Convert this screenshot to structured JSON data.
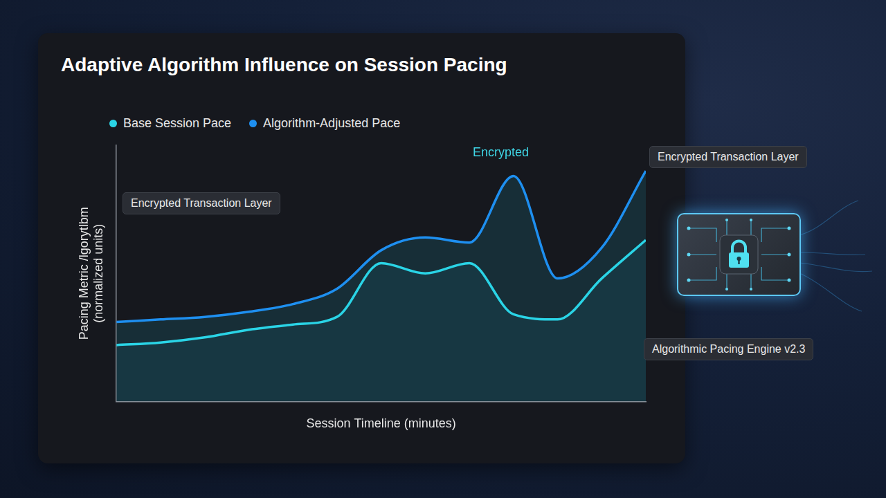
{
  "chart_data": {
    "type": "line",
    "title": "Adaptive Algorithm Influence on Session Pacing",
    "x_label": "Session Timeline (minutes)",
    "y_label": "Pacing Metric /lgorytlbm (normalized units)",
    "x": [
      0,
      5,
      10,
      15,
      20,
      25,
      30,
      35,
      40,
      45,
      50,
      55,
      60
    ],
    "xlim": [
      0,
      60
    ],
    "ylim": [
      0,
      10
    ],
    "tick_labels": false,
    "grid": false,
    "legend": "top-left",
    "series": [
      {
        "name": "Base Session Pace",
        "color": "#2ad4e6",
        "values": [
          2.2,
          2.3,
          2.5,
          2.8,
          3.0,
          3.3,
          5.4,
          5.0,
          5.4,
          3.4,
          3.2,
          4.8,
          6.3
        ]
      },
      {
        "name": "Algorithm-Adjusted Pace",
        "color": "#1e8ff0",
        "values": [
          3.1,
          3.2,
          3.3,
          3.5,
          3.8,
          4.4,
          5.9,
          6.4,
          6.2,
          8.8,
          4.8,
          6.0,
          9.0
        ]
      }
    ],
    "annotations": [
      {
        "text": "Encrypted Transaction Layer"
      },
      {
        "text": "Encrypted"
      },
      {
        "text": "Encrypted Transaction Layer"
      },
      {
        "text": "Algorithmic Pacing Engine v2.3"
      }
    ]
  }
}
